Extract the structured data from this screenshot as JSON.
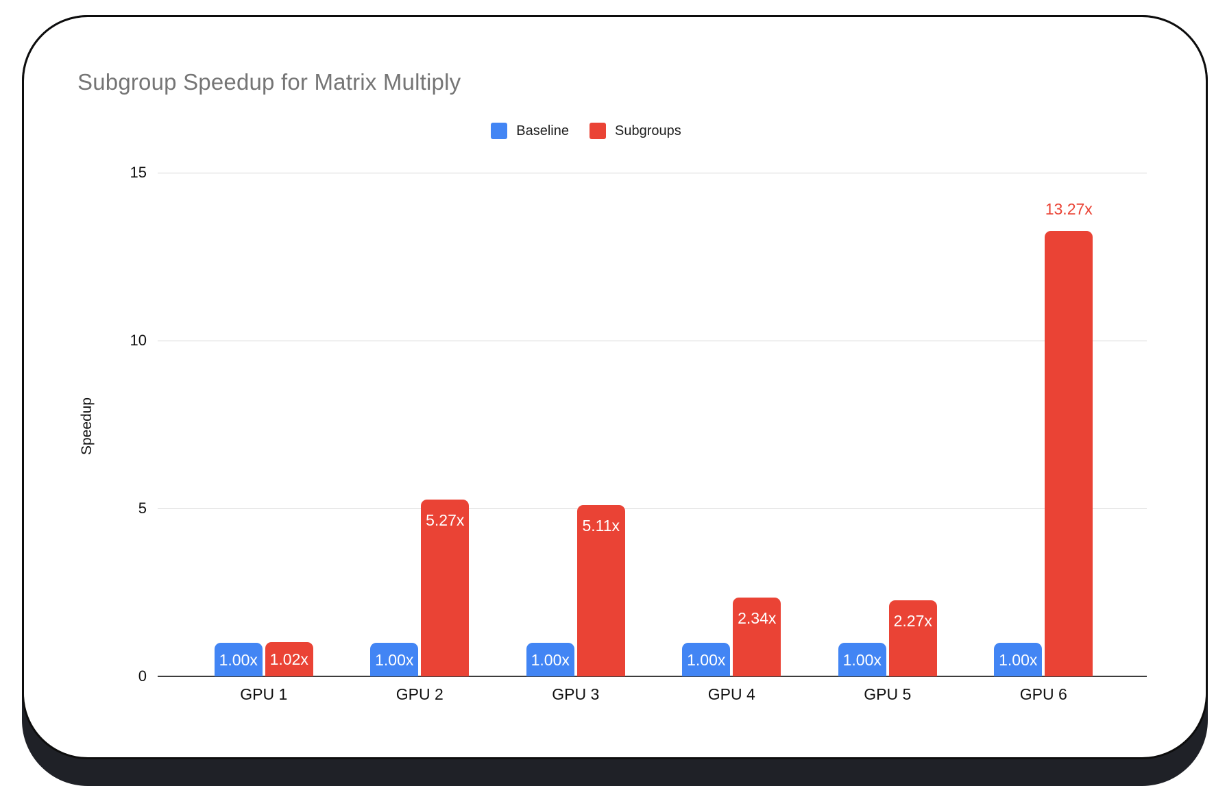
{
  "card": {
    "background": "#ffffff",
    "border_color": "#0d0d0d",
    "shadow_color": "#1f2127"
  },
  "chart_data": {
    "type": "bar",
    "title": "Subgroup Speedup for Matrix Multiply",
    "title_color": "#757575",
    "xlabel": "",
    "ylabel": "Speedup",
    "categories": [
      "GPU 1",
      "GPU 2",
      "GPU 3",
      "GPU 4",
      "GPU 5",
      "GPU 6"
    ],
    "series": [
      {
        "name": "Baseline",
        "color": "#4285F4",
        "values": [
          1.0,
          1.0,
          1.0,
          1.0,
          1.0,
          1.0
        ],
        "labels": [
          "1.00x",
          "1.00x",
          "1.00x",
          "1.00x",
          "1.00x",
          "1.00x"
        ],
        "label_positions": [
          "inside",
          "inside",
          "inside",
          "inside",
          "inside",
          "inside"
        ]
      },
      {
        "name": "Subgroups",
        "color": "#EA4335",
        "values": [
          1.02,
          5.27,
          5.11,
          2.34,
          2.27,
          13.27
        ],
        "labels": [
          "1.02x",
          "5.27x",
          "5.11x",
          "2.34x",
          "2.27x",
          "13.27x"
        ],
        "label_positions": [
          "inside",
          "inside",
          "inside",
          "inside",
          "inside",
          "above"
        ]
      }
    ],
    "yticks": [
      0,
      5,
      10,
      15
    ],
    "ylim": [
      0,
      15
    ],
    "grid": true,
    "legend_position": "top",
    "gridline_color": "#d6d6d6",
    "axis_line_color": "#3c3c3c",
    "inside_label_color": "#ffffff"
  }
}
